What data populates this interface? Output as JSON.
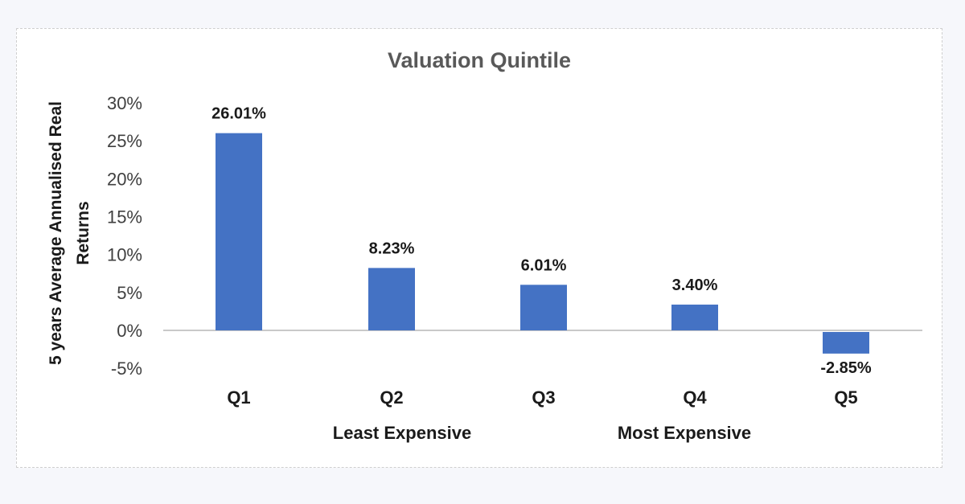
{
  "chart_data": {
    "type": "bar",
    "title": "Valuation Quintile",
    "ylabel_lines": [
      "5 years Average Annualised Real",
      "Returns"
    ],
    "xlabel": "",
    "categories": [
      "Q1",
      "Q2",
      "Q3",
      "Q4",
      "Q5"
    ],
    "values": [
      26.01,
      8.23,
      6.01,
      3.4,
      -2.85
    ],
    "data_labels": [
      "26.01%",
      "8.23%",
      "6.01%",
      "3.40%",
      "-2.85%"
    ],
    "annotations": [
      "Least Expensive",
      "Most Expensive"
    ],
    "ylim": [
      -5,
      30
    ],
    "yticks": [
      30,
      25,
      20,
      15,
      10,
      5,
      0,
      -5
    ],
    "ytick_labels": [
      "30%",
      "25%",
      "20%",
      "15%",
      "10%",
      "5%",
      "0%",
      "-5%"
    ],
    "bar_color": "#4472c4",
    "grid": false,
    "legend": "none"
  }
}
